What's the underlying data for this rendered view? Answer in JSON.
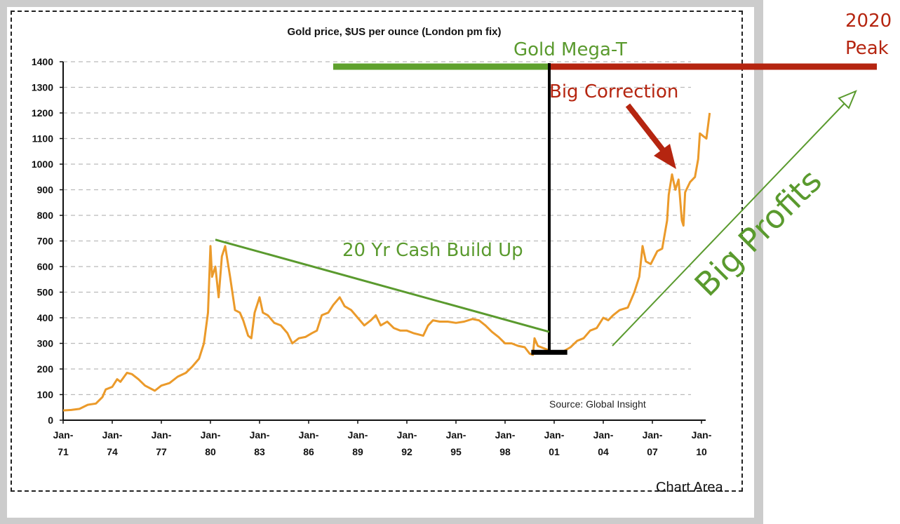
{
  "chart_data": {
    "type": "line",
    "title": "Gold price, $US per ounce (London pm fix)",
    "xlabel": "",
    "ylabel": "",
    "ylim": [
      0,
      1400
    ],
    "yticks": [
      0,
      100,
      200,
      300,
      400,
      500,
      600,
      700,
      800,
      900,
      1000,
      1100,
      1200,
      1300,
      1400
    ],
    "xlim": [
      1971,
      2010.6
    ],
    "xticks": [
      {
        "year": 1971,
        "label1": "Jan-",
        "label2": "71"
      },
      {
        "year": 1974,
        "label1": "Jan-",
        "label2": "74"
      },
      {
        "year": 1977,
        "label1": "Jan-",
        "label2": "77"
      },
      {
        "year": 1980,
        "label1": "Jan-",
        "label2": "80"
      },
      {
        "year": 1983,
        "label1": "Jan-",
        "label2": "83"
      },
      {
        "year": 1986,
        "label1": "Jan-",
        "label2": "86"
      },
      {
        "year": 1989,
        "label1": "Jan-",
        "label2": "89"
      },
      {
        "year": 1992,
        "label1": "Jan-",
        "label2": "92"
      },
      {
        "year": 1995,
        "label1": "Jan-",
        "label2": "95"
      },
      {
        "year": 1998,
        "label1": "Jan-",
        "label2": "98"
      },
      {
        "year": 2001,
        "label1": "Jan-",
        "label2": "01"
      },
      {
        "year": 2004,
        "label1": "Jan-",
        "label2": "04"
      },
      {
        "year": 2007,
        "label1": "Jan-",
        "label2": "07"
      },
      {
        "year": 2010,
        "label1": "Jan-",
        "label2": "10"
      }
    ],
    "grid": true,
    "series": [
      {
        "name": "Gold price",
        "color": "#eb9a2a",
        "points": [
          [
            1971.0,
            38
          ],
          [
            1971.5,
            40
          ],
          [
            1972.0,
            44
          ],
          [
            1972.5,
            60
          ],
          [
            1973.0,
            65
          ],
          [
            1973.4,
            90
          ],
          [
            1973.6,
            120
          ],
          [
            1974.0,
            130
          ],
          [
            1974.3,
            160
          ],
          [
            1974.5,
            150
          ],
          [
            1974.9,
            185
          ],
          [
            1975.2,
            180
          ],
          [
            1975.6,
            160
          ],
          [
            1976.0,
            135
          ],
          [
            1976.6,
            115
          ],
          [
            1977.0,
            135
          ],
          [
            1977.5,
            145
          ],
          [
            1978.0,
            170
          ],
          [
            1978.5,
            185
          ],
          [
            1978.9,
            210
          ],
          [
            1979.3,
            240
          ],
          [
            1979.6,
            300
          ],
          [
            1979.85,
            420
          ],
          [
            1980.0,
            680
          ],
          [
            1980.1,
            560
          ],
          [
            1980.3,
            600
          ],
          [
            1980.5,
            480
          ],
          [
            1980.7,
            640
          ],
          [
            1980.9,
            680
          ],
          [
            1981.2,
            560
          ],
          [
            1981.5,
            430
          ],
          [
            1981.8,
            420
          ],
          [
            1982.0,
            390
          ],
          [
            1982.3,
            330
          ],
          [
            1982.5,
            320
          ],
          [
            1982.7,
            420
          ],
          [
            1983.0,
            480
          ],
          [
            1983.2,
            420
          ],
          [
            1983.5,
            410
          ],
          [
            1983.9,
            380
          ],
          [
            1984.3,
            370
          ],
          [
            1984.7,
            340
          ],
          [
            1985.0,
            300
          ],
          [
            1985.4,
            320
          ],
          [
            1985.8,
            325
          ],
          [
            1986.2,
            340
          ],
          [
            1986.5,
            350
          ],
          [
            1986.8,
            410
          ],
          [
            1987.2,
            420
          ],
          [
            1987.5,
            450
          ],
          [
            1987.9,
            480
          ],
          [
            1988.2,
            445
          ],
          [
            1988.6,
            430
          ],
          [
            1989.0,
            400
          ],
          [
            1989.4,
            370
          ],
          [
            1989.8,
            390
          ],
          [
            1990.1,
            410
          ],
          [
            1990.4,
            370
          ],
          [
            1990.8,
            385
          ],
          [
            1991.2,
            360
          ],
          [
            1991.6,
            350
          ],
          [
            1992.0,
            350
          ],
          [
            1992.4,
            340
          ],
          [
            1992.7,
            335
          ],
          [
            1993.0,
            330
          ],
          [
            1993.3,
            370
          ],
          [
            1993.6,
            390
          ],
          [
            1994.0,
            385
          ],
          [
            1994.5,
            385
          ],
          [
            1995.0,
            380
          ],
          [
            1995.5,
            385
          ],
          [
            1996.0,
            395
          ],
          [
            1996.4,
            390
          ],
          [
            1996.8,
            370
          ],
          [
            1997.2,
            345
          ],
          [
            1997.6,
            325
          ],
          [
            1998.0,
            300
          ],
          [
            1998.4,
            300
          ],
          [
            1998.8,
            290
          ],
          [
            1999.2,
            285
          ],
          [
            1999.5,
            260
          ],
          [
            1999.7,
            255
          ],
          [
            1999.8,
            320
          ],
          [
            2000.0,
            290
          ],
          [
            2000.4,
            280
          ],
          [
            2000.8,
            270
          ],
          [
            2001.2,
            265
          ],
          [
            2001.6,
            270
          ],
          [
            2002.0,
            285
          ],
          [
            2002.4,
            310
          ],
          [
            2002.8,
            320
          ],
          [
            2003.2,
            350
          ],
          [
            2003.6,
            360
          ],
          [
            2004.0,
            400
          ],
          [
            2004.3,
            390
          ],
          [
            2004.6,
            410
          ],
          [
            2005.0,
            430
          ],
          [
            2005.5,
            440
          ],
          [
            2005.9,
            500
          ],
          [
            2006.2,
            560
          ],
          [
            2006.4,
            680
          ],
          [
            2006.6,
            620
          ],
          [
            2006.9,
            610
          ],
          [
            2007.3,
            660
          ],
          [
            2007.6,
            670
          ],
          [
            2007.9,
            780
          ],
          [
            2008.0,
            880
          ],
          [
            2008.2,
            960
          ],
          [
            2008.4,
            900
          ],
          [
            2008.6,
            940
          ],
          [
            2008.8,
            780
          ],
          [
            2008.9,
            760
          ],
          [
            2009.0,
            890
          ],
          [
            2009.3,
            930
          ],
          [
            2009.6,
            950
          ],
          [
            2009.8,
            1020
          ],
          [
            2009.9,
            1120
          ],
          [
            2010.1,
            1110
          ],
          [
            2010.3,
            1100
          ],
          [
            2010.5,
            1200
          ]
        ]
      }
    ],
    "source": "Source: Global Insight",
    "annotations": [
      {
        "text": "Gold Mega-T",
        "color": "#3e8a2a"
      },
      {
        "text": "Big Correction",
        "color": "#b52510"
      },
      {
        "text": "20 Yr Cash Build Up",
        "color": "#5a9a2e"
      },
      {
        "text": "Big Profits",
        "color": "#5a9a2e"
      },
      {
        "text": "2020",
        "color": "#b52510"
      },
      {
        "text": "Peak",
        "color": "#b52510"
      }
    ],
    "overlay_lines": {
      "mega_t_green_bar": {
        "x_from": 1987.5,
        "x_to": 2000.7,
        "y": 1380,
        "color": "#5fa12e"
      },
      "mega_t_red_bar": {
        "x_from": 2000.7,
        "x_to": 2026,
        "y": 1380,
        "color": "#b52510"
      },
      "mega_t_stem": {
        "x": 2000.7,
        "y_from": 1380,
        "y_to": 265,
        "color": "#000000"
      },
      "mega_t_base": {
        "x_from": 1999.6,
        "x_to": 2001.8,
        "y": 265,
        "color": "#000000"
      },
      "cash_build_trend": {
        "from": [
          1980.3,
          705
        ],
        "to": [
          2000.7,
          345
        ],
        "color": "#5a9a2e"
      },
      "big_profits_arrow": {
        "from": [
          2004.2,
          285
        ],
        "to": [
          2013.0,
          1270
        ],
        "color": "#5a9a2e"
      },
      "correction_arrow": {
        "from": [
          2005.0,
          1230
        ],
        "to": [
          2008.4,
          970
        ],
        "color": "#b52510"
      }
    }
  },
  "chart_area_label": "Chart Area"
}
